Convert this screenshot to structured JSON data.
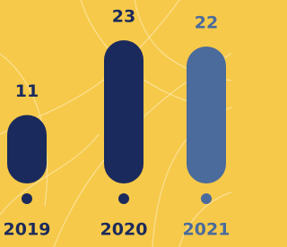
{
  "chart_data": {
    "type": "bar",
    "categories": [
      "2019",
      "2020",
      "2021"
    ],
    "values": [
      11,
      23,
      22
    ],
    "colors": [
      "#1b2a5c",
      "#1b2a5c",
      "#4a6b9c"
    ]
  }
}
